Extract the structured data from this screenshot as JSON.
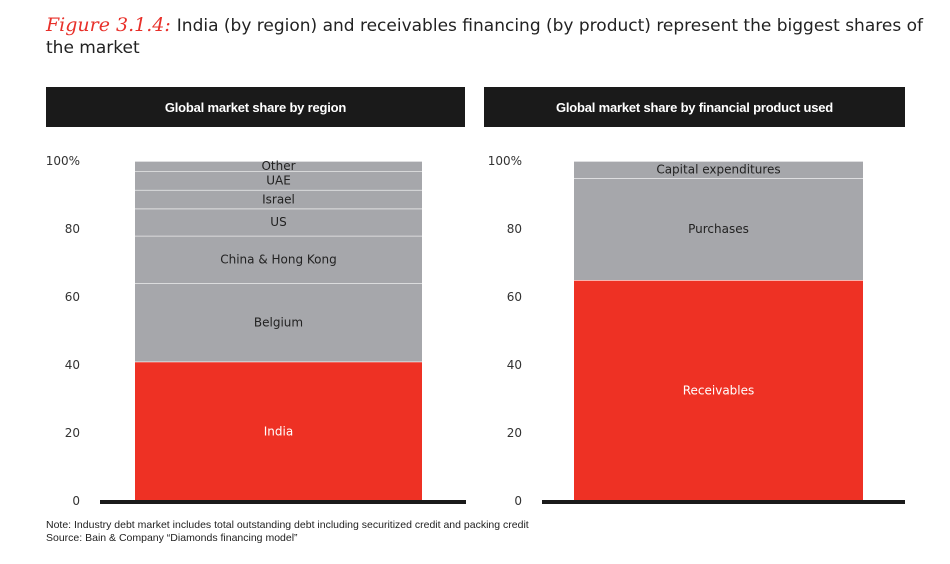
{
  "figure": {
    "label": "Figure 3.1.4:",
    "title": "India (by region) and receivables financing (by product) represent the biggest shares of the market"
  },
  "colors": {
    "highlight": "#ee3124",
    "segment": "#a6a7ab",
    "header_bg": "#1a1a1a",
    "axis": "#1a1a1a"
  },
  "chart_data": [
    {
      "type": "bar",
      "stacked": true,
      "title": "Global market share by region",
      "yticks": [
        "0",
        "20",
        "40",
        "60",
        "80",
        "100%"
      ],
      "ylim": [
        0,
        100
      ],
      "series": [
        {
          "name": "India",
          "value": 41,
          "highlight": true
        },
        {
          "name": "Belgium",
          "value": 23
        },
        {
          "name": "China & Hong Kong",
          "value": 14
        },
        {
          "name": "US",
          "value": 8
        },
        {
          "name": "Israel",
          "value": 5.5
        },
        {
          "name": "UAE",
          "value": 5.5
        },
        {
          "name": "Other",
          "value": 3
        }
      ]
    },
    {
      "type": "bar",
      "stacked": true,
      "title": "Global market share by financial product used",
      "yticks": [
        "0",
        "20",
        "40",
        "60",
        "80",
        "100%"
      ],
      "ylim": [
        0,
        100
      ],
      "series": [
        {
          "name": "Receivables",
          "value": 65,
          "highlight": true
        },
        {
          "name": "Purchases",
          "value": 30
        },
        {
          "name": "Capital expenditures",
          "value": 5
        }
      ]
    }
  ],
  "notes": {
    "note": "Note: Industry debt market includes total outstanding debt including securitized credit and packing credit",
    "source": "Source:  Bain & Company “Diamonds financing model”"
  }
}
